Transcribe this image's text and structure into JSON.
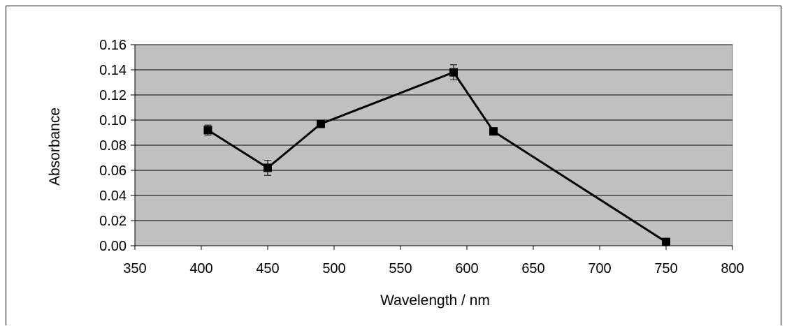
{
  "chart_data": {
    "type": "line",
    "title": "",
    "xlabel": "Wavelength / nm",
    "ylabel": "Absorbance",
    "xlim": [
      350,
      800
    ],
    "ylim": [
      0,
      0.16
    ],
    "x_ticks": [
      "350",
      "400",
      "450",
      "500",
      "550",
      "600",
      "650",
      "700",
      "750",
      "800"
    ],
    "y_ticks": [
      "0.00",
      "0.02",
      "0.04",
      "0.06",
      "0.08",
      "0.10",
      "0.12",
      "0.14",
      "0.16"
    ],
    "grid": "horizontal",
    "legend": "none",
    "plot_background": "#c0c0c0",
    "line_color": "#000000",
    "marker": "square",
    "series": [
      {
        "x": [
          405,
          450,
          490,
          590,
          620,
          750
        ],
        "y": [
          0.092,
          0.062,
          0.097,
          0.138,
          0.091,
          0.003
        ],
        "error": [
          0.004,
          0.006,
          0.003,
          0.006,
          0.003,
          0.002
        ]
      }
    ]
  }
}
